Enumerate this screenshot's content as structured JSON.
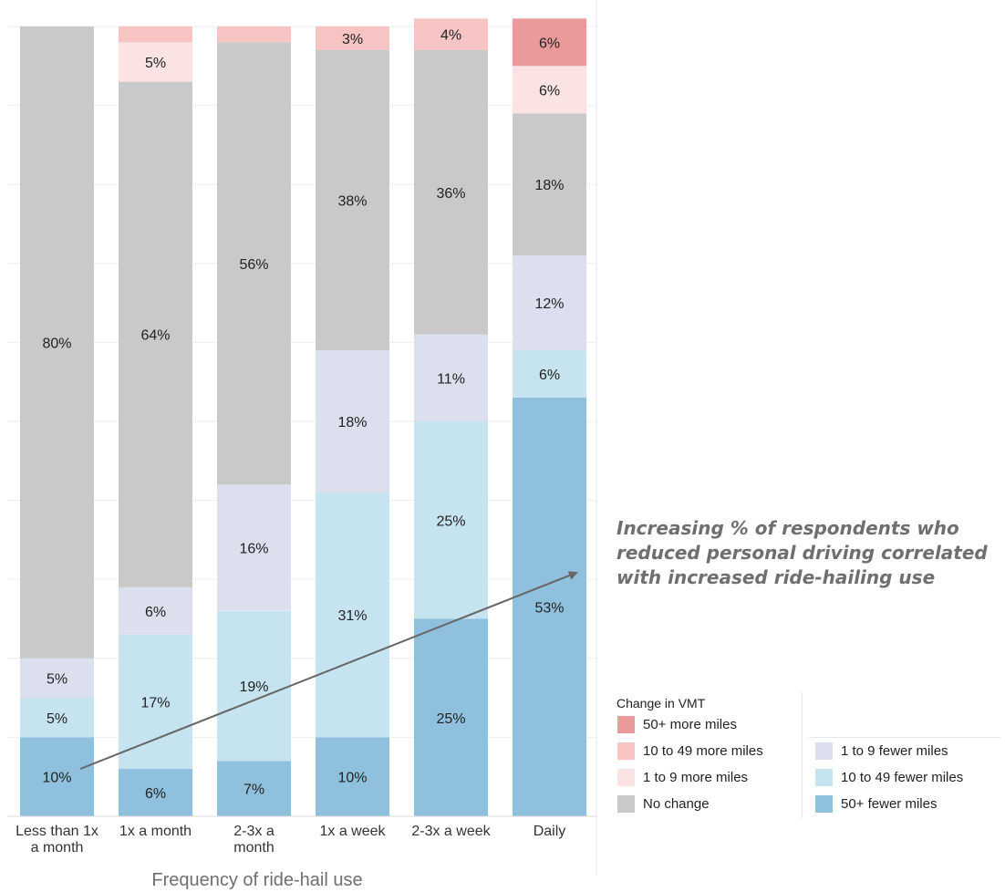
{
  "chart_data": {
    "type": "bar",
    "stacked": true,
    "xlabel": "Frequency of ride-hail use",
    "ylabel": "",
    "ylim": [
      0,
      100
    ],
    "grid": true,
    "categories": [
      "Less than 1x a month",
      "1x a month",
      "2-3x a month",
      "1x a week",
      "2-3x a week",
      "Daily"
    ],
    "category_lines": [
      [
        "Less than 1x",
        "a month"
      ],
      [
        "1x a month"
      ],
      [
        "2-3x a",
        "month"
      ],
      [
        "1x a week"
      ],
      [
        "2-3x a week"
      ],
      [
        "Daily"
      ]
    ],
    "series": [
      {
        "name": "50+ fewer miles",
        "color": "#8fc0de",
        "values": [
          10,
          6,
          7,
          10,
          25,
          53
        ],
        "labels": [
          "10%",
          "6%",
          "7%",
          "10%",
          "25%",
          "53%"
        ]
      },
      {
        "name": "10 to 49 fewer miles",
        "color": "#c6e3f0",
        "values": [
          5,
          17,
          19,
          31,
          25,
          6
        ],
        "labels": [
          "5%",
          "17%",
          "19%",
          "31%",
          "25%",
          "6%"
        ]
      },
      {
        "name": "1 to 9 fewer miles",
        "color": "#dce0ee",
        "values": [
          5,
          6,
          16,
          18,
          11,
          12
        ],
        "labels": [
          "5%",
          "6%",
          "16%",
          "18%",
          "11%",
          "12%"
        ]
      },
      {
        "name": "No change",
        "color": "#c9c9c9",
        "values": [
          80,
          64,
          56,
          38,
          36,
          18
        ],
        "labels": [
          "80%",
          "64%",
          "56%",
          "38%",
          "36%",
          "18%"
        ]
      },
      {
        "name": "1 to 9 more miles",
        "color": "#fbe3e3",
        "values": [
          0,
          5,
          0,
          0,
          0,
          6
        ],
        "labels": [
          "",
          "5%",
          "",
          "",
          "",
          "6%"
        ]
      },
      {
        "name": "10 to 49 more miles",
        "color": "#f7c4c4",
        "values": [
          0,
          2,
          2,
          3,
          4,
          0
        ],
        "labels": [
          "",
          "",
          "",
          "3%",
          "4%",
          ""
        ]
      },
      {
        "name": "50+ more miles",
        "color": "#ea9a9a",
        "values": [
          0,
          0,
          0,
          0,
          0,
          6
        ],
        "labels": [
          "",
          "",
          "",
          "",
          "",
          "6%"
        ]
      }
    ],
    "annotation": [
      "Increasing % of respondents who",
      "reduced personal driving correlated",
      "with increased ride-hailing use"
    ],
    "legend_title": "Change in VMT",
    "legend_left": [
      {
        "label": "50+ more miles",
        "color": "#ea9a9a"
      },
      {
        "label": "10 to 49 more miles",
        "color": "#f7c4c4"
      },
      {
        "label": "1 to 9 more miles",
        "color": "#fbe3e3"
      },
      {
        "label": "No change",
        "color": "#c9c9c9"
      }
    ],
    "legend_right": [
      {
        "label": "1 to 9 fewer miles",
        "color": "#dce0ee"
      },
      {
        "label": "10 to 49 fewer miles",
        "color": "#c6e3f0"
      },
      {
        "label": "50+ fewer miles",
        "color": "#8fc0de"
      }
    ]
  }
}
